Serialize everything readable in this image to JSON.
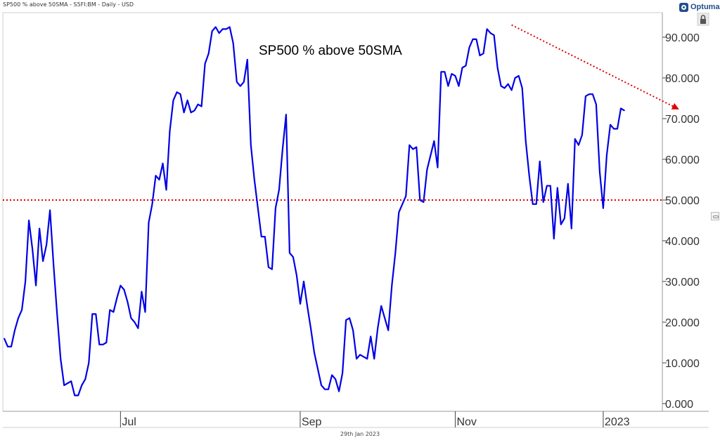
{
  "header": {
    "text": "SP500 % above 50SMA - S5FI:BM - Daily - USD"
  },
  "brand": {
    "name": "Optuma",
    "icon": "optuma-logo-icon"
  },
  "footer": {
    "date": "29th Jan 2023"
  },
  "colors": {
    "line": "#0000e6",
    "reference": "#e00000",
    "axis": "#444444"
  },
  "chart_data": {
    "type": "line",
    "title": "SP500 % above 50SMA",
    "xlabel": "",
    "ylabel": "",
    "ylim": [
      0,
      95
    ],
    "ytick_labels": [
      "0.000",
      "10.000",
      "20.000",
      "30.000",
      "40.000",
      "50.000",
      "60.000",
      "70.000",
      "80.000",
      "90.000"
    ],
    "x_tick_labels": [
      "Jul",
      "Sep",
      "Nov",
      "2023"
    ],
    "grid": false,
    "series": [
      {
        "values": [
          16,
          14,
          14,
          18,
          21,
          23,
          30,
          45,
          38,
          29,
          43,
          35,
          39,
          47.5,
          34,
          22,
          11,
          4.5,
          5,
          5.5,
          2,
          2,
          4.5,
          6,
          10,
          22,
          22,
          14.5,
          14.5,
          15,
          23,
          22.5,
          26,
          29,
          28,
          25,
          21,
          20,
          18.5,
          27.5,
          22.5,
          44.5,
          49,
          56,
          55,
          59,
          52.5,
          67,
          74.5,
          76.5,
          76,
          71.5,
          74.5,
          71.5,
          72,
          73.5,
          73,
          83.5,
          86,
          91.5,
          92.5,
          91,
          92,
          92,
          92.5,
          88.5,
          79,
          78,
          79,
          84.5,
          63.5,
          55,
          48,
          41,
          41,
          33.5,
          33,
          48,
          52.5,
          62.5,
          71,
          37,
          36,
          31.5,
          24.5,
          30,
          24,
          18.5,
          12.5,
          8.5,
          4.5,
          3.5,
          3.5,
          7,
          6,
          3,
          7.5,
          20.5,
          21,
          18,
          11,
          12,
          11.5,
          11,
          16.5,
          11,
          18.5,
          24,
          21,
          18,
          29,
          37,
          47,
          49,
          51,
          63.5,
          62.5,
          63,
          50,
          49.5,
          57.5,
          61,
          64.5,
          58,
          81.5,
          81.5,
          78,
          81,
          80.5,
          78,
          82.5,
          83,
          87.5,
          89.5,
          89.5,
          85.5,
          86,
          92,
          91,
          90.5,
          82.5,
          78,
          77.5,
          78.5,
          77,
          80,
          80.5,
          77.5,
          64.5,
          56,
          49,
          49,
          59.5,
          49.5,
          53.5,
          53.5,
          40.5,
          53,
          44,
          45.5,
          54,
          43,
          65,
          63.5,
          66,
          75.5,
          76,
          76,
          73.5,
          57,
          48,
          61,
          68.5,
          67.5,
          67.5,
          72.5,
          72
        ]
      }
    ],
    "reference_lines": [
      {
        "type": "horizontal",
        "value": 50,
        "style": "dotted"
      },
      {
        "type": "trend-arrow",
        "from_index": 144,
        "from_value": 93,
        "to_index": 191,
        "to_value": 72.5,
        "style": "dotted"
      }
    ]
  }
}
